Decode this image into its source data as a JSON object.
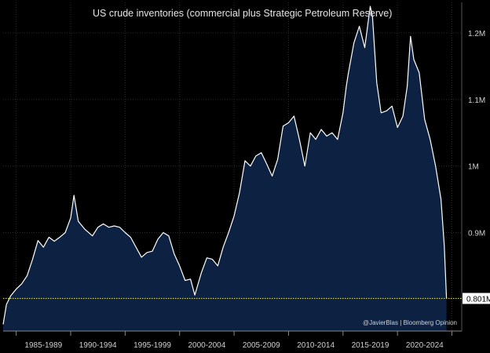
{
  "colors": {
    "background": "#000000",
    "area_fill": "#0d2142",
    "line": "#ffffff",
    "grid": "#2d2d2d",
    "reference_line": "#d8d84a",
    "reference_box": "#ffffff"
  },
  "chart_data": {
    "type": "area",
    "title": "US crude inventories (commercial plus Strategic Petroleum Reserve)",
    "credit": "@JavierBlas | Bloomberg Opinion",
    "xlabel": "",
    "ylabel": "",
    "x_range": [
      1983.3,
      2025.4
    ],
    "ylim": [
      0.752,
      1.246
    ],
    "y_ticks": [
      {
        "value": 0.9,
        "label": "0.9M"
      },
      {
        "value": 1.0,
        "label": "1M"
      },
      {
        "value": 1.1,
        "label": "1.1M"
      },
      {
        "value": 1.2,
        "label": "1.2M"
      }
    ],
    "x_tick_labels": [
      "1985-1989",
      "1990-1994",
      "1995-1999",
      "2000-2004",
      "2005-2009",
      "2010-2014",
      "2015-2019",
      "2020-2024"
    ],
    "x_tick_centers": [
      1987,
      1992,
      1997,
      2002,
      2007,
      2012,
      2017,
      2022
    ],
    "x_boundaries": [
      1984.5,
      1989.5,
      1994.5,
      1999.5,
      2004.5,
      2009.5,
      2014.5,
      2019.5,
      2024.5
    ],
    "grid": true,
    "reference_line": {
      "value": 0.801,
      "label": "0.801M"
    },
    "series": [
      {
        "x": [
          1983.3,
          1983.6,
          1984.0,
          1984.5,
          1985.0,
          1985.5,
          1986.0,
          1986.5,
          1987.0,
          1987.5,
          1988.0,
          1988.5,
          1989.0,
          1989.5,
          1989.8,
          1990.2,
          1990.8,
          1991.5,
          1992.0,
          1992.5,
          1993.0,
          1993.5,
          1994.0,
          1994.5,
          1995.0,
          1995.5,
          1996.0,
          1996.5,
          1997.0,
          1997.5,
          1998.0,
          1998.5,
          1999.0,
          1999.5,
          2000.0,
          2000.5,
          2000.9,
          2001.5,
          2002.0,
          2002.5,
          2003.0,
          2003.5,
          2004.0,
          2004.5,
          2005.0,
          2005.5,
          2006.0,
          2006.5,
          2007.0,
          2007.5,
          2008.0,
          2008.5,
          2009.0,
          2009.5,
          2010.0,
          2010.5,
          2011.0,
          2011.5,
          2012.0,
          2012.5,
          2013.0,
          2013.5,
          2014.0,
          2014.5,
          2014.8,
          2015.0,
          2015.5,
          2016.0,
          2016.5,
          2017.0,
          2017.2,
          2017.6,
          2018.0,
          2018.5,
          2019.0,
          2019.5,
          2020.0,
          2020.4,
          2020.7,
          2021.0,
          2021.5,
          2022.0,
          2022.5,
          2023.0,
          2023.5,
          2023.8,
          2024.0
        ],
        "y": [
          0.762,
          0.792,
          0.805,
          0.815,
          0.823,
          0.835,
          0.86,
          0.888,
          0.878,
          0.893,
          0.887,
          0.893,
          0.9,
          0.922,
          0.956,
          0.917,
          0.905,
          0.895,
          0.908,
          0.913,
          0.908,
          0.91,
          0.908,
          0.9,
          0.893,
          0.878,
          0.863,
          0.87,
          0.872,
          0.89,
          0.9,
          0.895,
          0.868,
          0.85,
          0.828,
          0.83,
          0.806,
          0.84,
          0.862,
          0.86,
          0.85,
          0.878,
          0.9,
          0.925,
          0.96,
          1.008,
          1.0,
          1.015,
          1.02,
          1.003,
          0.985,
          1.01,
          1.06,
          1.065,
          1.075,
          1.04,
          1.0,
          1.05,
          1.04,
          1.055,
          1.045,
          1.05,
          1.04,
          1.08,
          1.12,
          1.14,
          1.185,
          1.21,
          1.178,
          1.24,
          1.225,
          1.125,
          1.08,
          1.083,
          1.09,
          1.058,
          1.075,
          1.12,
          1.195,
          1.16,
          1.14,
          1.07,
          1.04,
          1.0,
          0.95,
          0.88,
          0.801
        ]
      }
    ]
  }
}
